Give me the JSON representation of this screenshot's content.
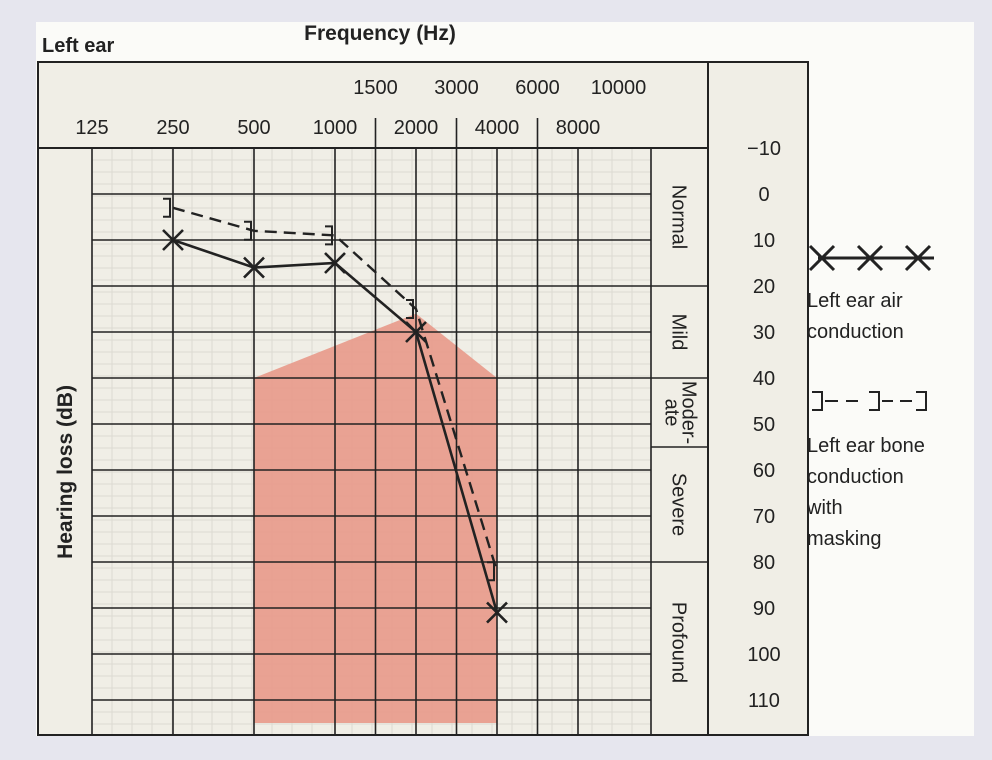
{
  "chart_data": {
    "type": "line",
    "title": "Frequency (Hz)",
    "subtitle": "Left ear",
    "ylabel": "Hearing loss (dB)",
    "y_reversed": true,
    "ylim": [
      -10,
      115
    ],
    "yticks": [
      -10,
      0,
      10,
      20,
      30,
      40,
      50,
      60,
      70,
      80,
      90,
      100,
      110
    ],
    "xticks_major": [
      "125",
      "250",
      "500",
      "1000",
      "2000",
      "4000",
      "8000"
    ],
    "xticks_inter": [
      "1500",
      "3000",
      "6000",
      "10000"
    ],
    "x_positions": {
      "125": 0,
      "250": 1,
      "500": 2,
      "1000": 3,
      "1500": 3.5,
      "2000": 4,
      "3000": 4.5,
      "4000": 5,
      "6000": 5.5,
      "8000": 6,
      "10000": 6.5
    },
    "categories_bands": [
      {
        "label": "Normal",
        "from": -10,
        "to": 20
      },
      {
        "label": "Mild",
        "from": 20,
        "to": 40
      },
      {
        "label": "Moder-\nate",
        "from": 40,
        "to": 55
      },
      {
        "label": "Severe",
        "from": 55,
        "to": 80
      },
      {
        "label": "Profound",
        "from": 80,
        "to": 115
      }
    ],
    "speech_banana": {
      "color": "#e8998a",
      "points": [
        {
          "freq": 500,
          "db": 40
        },
        {
          "freq": 2000,
          "db": 26
        },
        {
          "freq": 4000,
          "db": 40
        },
        {
          "freq": 4000,
          "db": 115
        },
        {
          "freq": 500,
          "db": 115
        }
      ]
    },
    "series": [
      {
        "name": "Left ear air conduction",
        "marker": "x",
        "linestyle": "solid",
        "points": [
          {
            "freq": 250,
            "db": 10
          },
          {
            "freq": 500,
            "db": 16
          },
          {
            "freq": 1000,
            "db": 15
          },
          {
            "freq": 2000,
            "db": 30
          },
          {
            "freq": 4000,
            "db": 91
          }
        ]
      },
      {
        "name": "Left ear bone conduction with masking",
        "marker": "]",
        "linestyle": "dashed",
        "points": [
          {
            "freq": 250,
            "db": 3
          },
          {
            "freq": 500,
            "db": 8
          },
          {
            "freq": 1000,
            "db": 9
          },
          {
            "freq": 2000,
            "db": 25
          },
          {
            "freq": 4000,
            "db": 82
          }
        ]
      }
    ],
    "legend": {
      "position": "right",
      "air_label_1": "Left ear air",
      "air_label_2": "conduction",
      "bone_label_1": "Left ear bone",
      "bone_label_2": "conduction",
      "bone_label_3": "with",
      "bone_label_4": "masking"
    }
  }
}
